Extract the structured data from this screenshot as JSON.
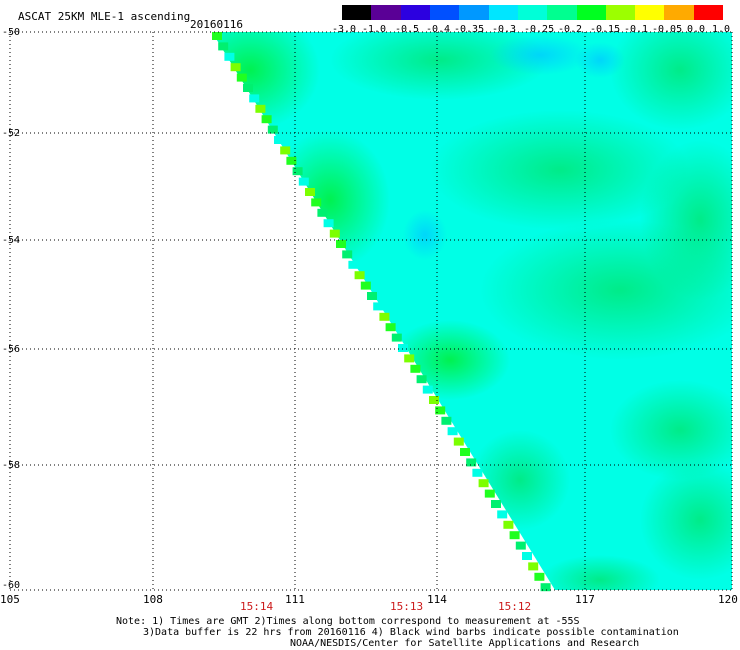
{
  "header": {
    "title": "ASCAT 25KM MLE-1 ascending",
    "date": "20160116"
  },
  "colorbar": {
    "labels": [
      "-3.0",
      "-1.0",
      "-0.5",
      "-0.4",
      "-0.35",
      "-0.3",
      "-0.25",
      "-0.2",
      "-0.15",
      "-0.1",
      "-0.05",
      "0.0",
      "1.0"
    ],
    "colors": [
      "#000000",
      "#5a0096",
      "#2c00e0",
      "#0050ff",
      "#0098ff",
      "#00e6ff",
      "#00ffd8",
      "#00ff90",
      "#00ff20",
      "#9cff00",
      "#ffff00",
      "#ffaa00",
      "#ff0000"
    ]
  },
  "axes": {
    "lon_ticks": [
      "105",
      "108",
      "111",
      "114",
      "117",
      "120"
    ],
    "lat_ticks": [
      "-50",
      "-52",
      "-54",
      "-56",
      "-58",
      "-60"
    ],
    "lon_range": [
      105,
      120
    ],
    "lat_range": [
      -50,
      -60
    ]
  },
  "times": [
    "15:14",
    "15:13",
    "15:12"
  ],
  "notes": {
    "line1": "Note: 1) Times are GMT 2)Times along bottom correspond to measurement at -55S",
    "line2": "3)Data buffer is 22 hrs from 20160116 4) Black wind barbs indicate possible contamination",
    "line3": "NOAA/NESDIS/Center for Satellite Applications and Research"
  },
  "colors": {
    "field_base": "#00ffe6",
    "field_green": "#00f070",
    "swath_edge_green": "#20ff20",
    "time_label": "#cc1a1a"
  }
}
